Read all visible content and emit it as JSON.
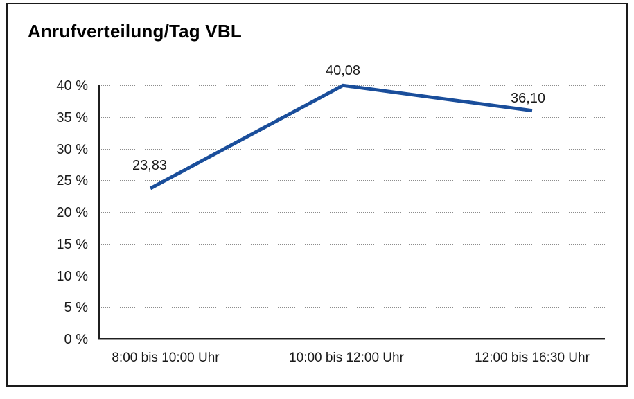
{
  "window": {
    "background_color": "#ffffff",
    "border_color": "#1a1a1a"
  },
  "chart_data": {
    "type": "line",
    "title": "Anrufverteilung/Tag VBL",
    "categories": [
      "8:00 bis 10:00 Uhr",
      "10:00 bis 12:00 Uhr",
      "12:00 bis 16:30 Uhr"
    ],
    "series": [
      {
        "name": "Anrufverteilung",
        "values": [
          23.83,
          40.08,
          36.1
        ],
        "point_labels": [
          "23,83",
          "40,08",
          "36,10"
        ]
      }
    ],
    "xlabel": "",
    "ylabel": "",
    "ylim": [
      0,
      40
    ],
    "ytick_step": 5,
    "ytick_labels": [
      "0 %",
      "5 %",
      "10 %",
      "15 %",
      "20 %",
      "25 %",
      "30 %",
      "35 %",
      "40 %"
    ],
    "grid": "horizontal-dotted",
    "legend": "none",
    "line_color": "#1a4e9b",
    "line_width": 5,
    "text_color": "#1a1a1a",
    "gridline_color": "#8c8c8c"
  }
}
